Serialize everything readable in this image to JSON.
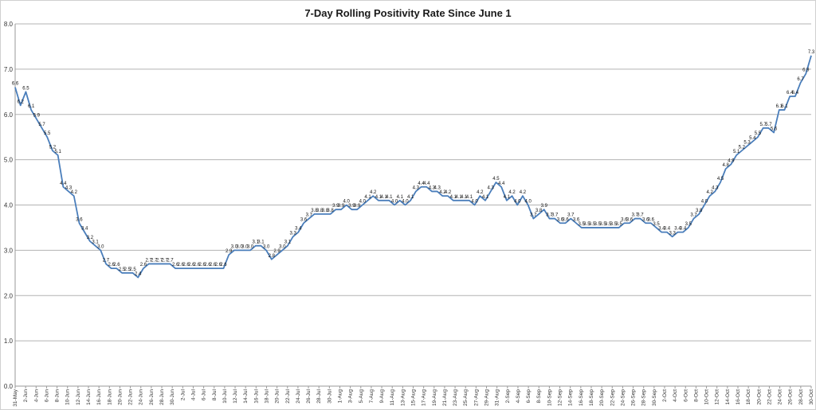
{
  "chart_data": {
    "type": "line",
    "title": "7-Day Rolling Positivity Rate Since June 1",
    "xlabel": "",
    "ylabel": "",
    "ylim": [
      0,
      8
    ],
    "yticks": [
      "0.0",
      "1.0",
      "2.0",
      "3.0",
      "4.0",
      "5.0",
      "6.0",
      "7.0",
      "8.0"
    ],
    "grid": "horizontal",
    "line_color": "#4a7ebb",
    "x_tick_labels": [
      "31-May",
      "2-Jun",
      "4-Jun",
      "6-Jun",
      "8-Jun",
      "10-Jun",
      "12-Jun",
      "14-Jun",
      "16-Jun",
      "18-Jun",
      "20-Jun",
      "22-Jun",
      "24-Jun",
      "26-Jun",
      "28-Jun",
      "30-Jun",
      "2-Jul",
      "4-Jul",
      "6-Jul",
      "8-Jul",
      "10-Jul",
      "12-Jul",
      "14-Jul",
      "16-Jul",
      "18-Jul",
      "20-Jul",
      "22-Jul",
      "24-Jul",
      "26-Jul",
      "28-Jul",
      "30-Jul",
      "1-Aug",
      "3-Aug",
      "5-Aug",
      "7-Aug",
      "9-Aug",
      "11-Aug",
      "13-Aug",
      "15-Aug",
      "17-Aug",
      "19-Aug",
      "21-Aug",
      "23-Aug",
      "25-Aug",
      "27-Aug",
      "29-Aug",
      "31-Aug",
      "2-Sep",
      "4-Sep",
      "6-Sep",
      "8-Sep",
      "10-Sep",
      "12-Sep",
      "14-Sep",
      "16-Sep",
      "18-Sep",
      "20-Sep",
      "22-Sep",
      "24-Sep",
      "26-Sep",
      "28-Sep",
      "30-Sep",
      "2-Oct",
      "4-Oct",
      "6-Oct",
      "8-Oct",
      "10-Oct",
      "12-Oct",
      "14-Oct",
      "16-Oct",
      "18-Oct",
      "20-Oct",
      "22-Oct",
      "24-Oct",
      "26-Oct",
      "28-Oct",
      "30-Oct"
    ],
    "series": [
      {
        "values": [
          6.6,
          6.2,
          6.5,
          6.1,
          5.9,
          5.7,
          5.5,
          5.2,
          5.1,
          4.4,
          4.3,
          4.2,
          3.6,
          3.4,
          3.2,
          3.1,
          3.0,
          2.7,
          2.6,
          2.6,
          2.5,
          2.5,
          2.5,
          2.4,
          2.6,
          2.7,
          2.7,
          2.7,
          2.7,
          2.7,
          2.6,
          2.6,
          2.6,
          2.6,
          2.6,
          2.6,
          2.6,
          2.6,
          2.6,
          2.6,
          2.9,
          3.0,
          3.0,
          3.0,
          3.0,
          3.1,
          3.1,
          3.0,
          2.8,
          2.9,
          3.0,
          3.1,
          3.3,
          3.4,
          3.6,
          3.7,
          3.8,
          3.8,
          3.8,
          3.8,
          3.9,
          3.9,
          4.0,
          3.9,
          3.9,
          4.0,
          4.1,
          4.2,
          4.1,
          4.1,
          4.1,
          4.0,
          4.1,
          4.0,
          4.1,
          4.3,
          4.4,
          4.4,
          4.3,
          4.3,
          4.2,
          4.2,
          4.1,
          4.1,
          4.1,
          4.1,
          4.0,
          4.2,
          4.1,
          4.3,
          4.5,
          4.4,
          4.1,
          4.2,
          4.0,
          4.2,
          4.0,
          3.7,
          3.8,
          3.9,
          3.7,
          3.7,
          3.6,
          3.6,
          3.7,
          3.6,
          3.5,
          3.5,
          3.5,
          3.5,
          3.5,
          3.5,
          3.5,
          3.5,
          3.6,
          3.6,
          3.7,
          3.7,
          3.6,
          3.6,
          3.5,
          3.4,
          3.4,
          3.3,
          3.4,
          3.4,
          3.5,
          3.7,
          3.8,
          4.0,
          4.2,
          4.3,
          4.5,
          4.8,
          4.9,
          5.1,
          5.2,
          5.3,
          5.4,
          5.5,
          5.7,
          5.7,
          5.6,
          6.1,
          6.1,
          6.4,
          6.4,
          6.7,
          6.9,
          7.3
        ]
      }
    ],
    "data_labels": [
      "6.6",
      "6.2",
      "6.5",
      "6.1",
      "5.9",
      "5.7",
      "5.5",
      "5.2",
      "5.1",
      "4.4",
      "4.3",
      "4.2",
      "3.6",
      "3.4",
      "3.2",
      "3.1",
      "3.0",
      "2.7",
      "2.6",
      "2.6",
      "2.5",
      "2.5",
      "2.5",
      "2.4",
      "2.6",
      "2.7",
      "2.7",
      "2.7",
      "2.7",
      "2.7",
      "2.6",
      "2.6",
      "2.6",
      "2.6",
      "2.6",
      "2.6",
      "2.6",
      "2.6",
      "2.6",
      "2.6",
      "2.9",
      "3.0",
      "3.0",
      "3.0",
      "3.0",
      "3.1",
      "3.1",
      "3.0",
      "2.8",
      "2.9",
      "3.0",
      "3.1",
      "3.3",
      "3.4",
      "3.6",
      "3.7",
      "3.8",
      "3.8",
      "3.8",
      "3.8",
      "3.9",
      "3.9",
      "4.0",
      "3.9",
      "3.9",
      "4.0",
      "4.1",
      "4.2",
      "4.1",
      "4.1",
      "4.1",
      "4.0",
      "4.1",
      "4.0",
      "4.1",
      "4.3",
      "4.4",
      "4.4",
      "4.3",
      "4.3",
      "4.2",
      "4.2",
      "4.1",
      "4.1",
      "4.1",
      "4.1",
      "4.0",
      "4.2",
      "4.1",
      "4.3",
      "4.5",
      "4.4",
      "4.1",
      "4.2",
      "4.0",
      "4.2",
      "4.0",
      "3.7",
      "3.8",
      "3.9",
      "3.7",
      "3.7",
      "3.6",
      "3.6",
      "3.7",
      "3.6",
      "3.5",
      "3.5",
      "3.5",
      "3.5",
      "3.5",
      "3.5",
      "3.5",
      "3.5",
      "3.6",
      "3.6",
      "3.7",
      "3.7",
      "3.6",
      "3.6",
      "3.5",
      "3.4",
      "3.4",
      "3.3",
      "3.4",
      "3.4",
      "3.5",
      "3.7",
      "3.8",
      "4.0",
      "4.2",
      "4.3",
      "4.5",
      "4.8",
      "4.9",
      "5.1",
      "5.2",
      "5.3",
      "5.4",
      "5.5",
      "5.7",
      "5.7",
      "5.6",
      "6.1",
      "6.1",
      "6.4",
      "6.4",
      "6.7",
      "6.9",
      "7.3"
    ]
  }
}
